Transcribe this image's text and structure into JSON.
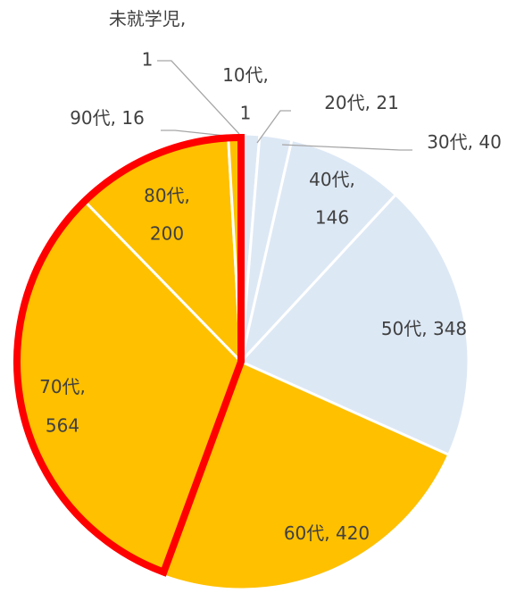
{
  "chart_data": {
    "type": "pie",
    "categories": [
      "未就学児",
      "10代",
      "20代",
      "30代",
      "40代",
      "50代",
      "60代",
      "70代",
      "80代",
      "90代"
    ],
    "values": [
      1,
      1,
      21,
      40,
      146,
      348,
      420,
      564,
      200,
      16
    ],
    "colors": [
      "#dde8f5",
      "#dde8f5",
      "#dde8f5",
      "#dde8f5",
      "#dde8f5",
      "#dde8f5",
      "#ffc000",
      "#ffc000",
      "#ffc000",
      "#ffc000"
    ]
  }
}
